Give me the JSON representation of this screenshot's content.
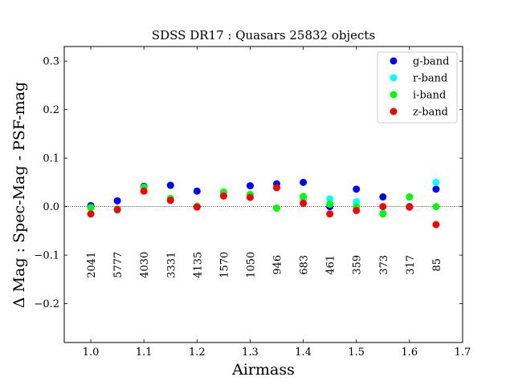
{
  "chart_data": {
    "type": "scatter",
    "title": "SDSS DR17 : Quasars 25832 objects",
    "xlabel": "Airmass",
    "ylabel": "Δ Mag : Spec-Mag - PSF-mag",
    "xlim": [
      0.95,
      1.7
    ],
    "ylim": [
      -0.28,
      0.33
    ],
    "xticks": [
      1.0,
      1.1,
      1.2,
      1.3,
      1.4,
      1.5,
      1.6,
      1.7
    ],
    "xtick_labels": [
      "1.0",
      "1.1",
      "1.2",
      "1.3",
      "1.4",
      "1.5",
      "1.6",
      "1.7"
    ],
    "yticks": [
      -0.2,
      -0.1,
      0.0,
      0.1,
      0.2,
      0.3
    ],
    "ytick_labels": [
      "−0.2",
      "−0.1",
      "0.0",
      "0.1",
      "0.2",
      "0.3"
    ],
    "grid": false,
    "zero_line": true,
    "legend_position": "top-right",
    "x": [
      1.0,
      1.05,
      1.1,
      1.15,
      1.2,
      1.25,
      1.3,
      1.35,
      1.4,
      1.45,
      1.5,
      1.55,
      1.6,
      1.65
    ],
    "series": [
      {
        "name": "g-band",
        "color": "#0000ff",
        "values": [
          0.002,
          0.012,
          0.042,
          0.044,
          0.032,
          0.024,
          0.043,
          0.047,
          0.05,
          0.0,
          0.036,
          0.02,
          0.0,
          0.036
        ]
      },
      {
        "name": "r-band",
        "color": "#00ffff",
        "values": [
          -0.002,
          -0.008,
          0.04,
          0.015,
          0.0,
          0.026,
          0.025,
          -0.003,
          0.015,
          0.016,
          0.01,
          -0.013,
          0.02,
          0.05
        ]
      },
      {
        "name": "i-band",
        "color": "#00ff00",
        "values": [
          -0.002,
          -0.005,
          0.04,
          0.017,
          0.001,
          0.03,
          0.025,
          -0.003,
          0.021,
          0.005,
          0.0,
          -0.015,
          0.02,
          0.0
        ]
      },
      {
        "name": "z-band",
        "color": "#ff0000",
        "values": [
          -0.015,
          -0.006,
          0.032,
          0.013,
          -0.001,
          0.022,
          0.019,
          0.039,
          0.007,
          -0.015,
          -0.008,
          0.0,
          -0.001,
          -0.037
        ]
      }
    ],
    "annotations": {
      "y": -0.12,
      "values": [
        "2041",
        "5777",
        "4030",
        "3331",
        "4135",
        "1570",
        "1050",
        "946",
        "683",
        "461",
        "359",
        "373",
        "317",
        "85"
      ]
    }
  }
}
